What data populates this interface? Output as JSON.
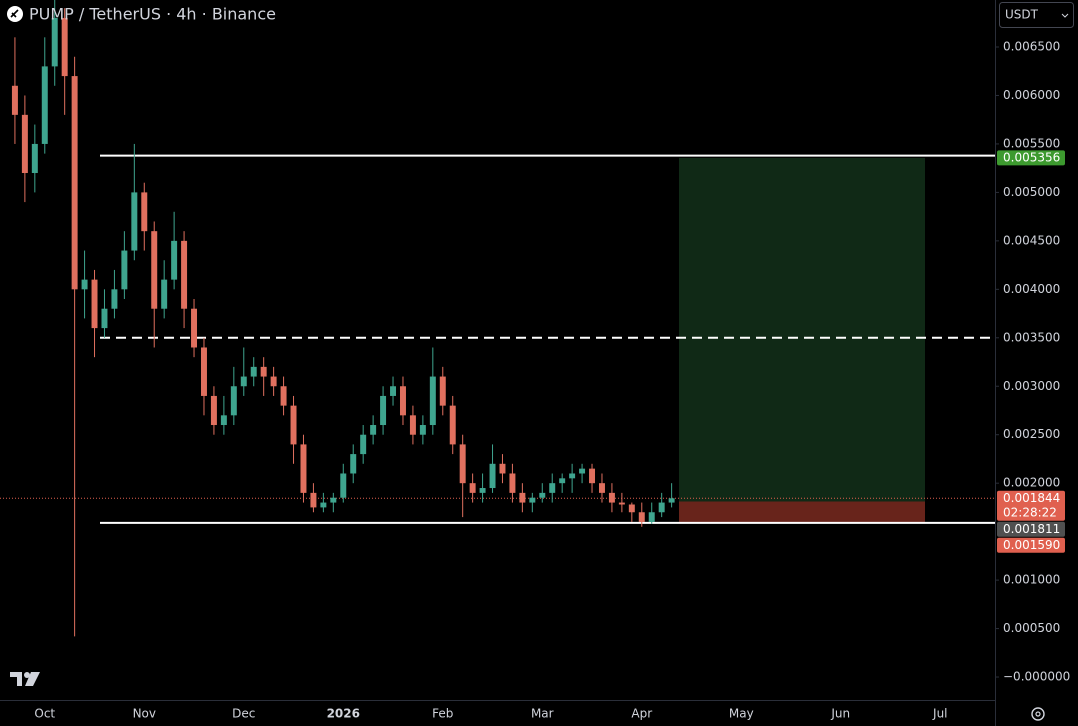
{
  "chart_data": {
    "type": "candlestick",
    "title": "PUMP / TetherUS · 4h · Binance",
    "currency": "USDT",
    "up_color": "#3fa58f",
    "down_color": "#e0705f",
    "categories": [
      null,
      null,
      null,
      null,
      "Oct",
      null,
      null,
      null,
      null,
      null,
      null,
      null,
      null,
      null,
      "Nov",
      null,
      null,
      null,
      null,
      null,
      null,
      null,
      null,
      null,
      "Dec",
      null,
      null,
      null,
      null,
      null,
      null,
      null,
      null,
      null,
      "2026",
      null,
      null,
      null,
      null,
      null,
      null,
      null,
      null,
      null,
      "Feb",
      null,
      null,
      null,
      null,
      null,
      null,
      null,
      null,
      null,
      "Mar",
      null,
      null,
      null,
      null,
      null,
      null,
      null,
      null,
      null,
      "Apr",
      null,
      null,
      null,
      null,
      null,
      null,
      null,
      null,
      null,
      "May",
      null,
      null,
      null,
      null,
      null,
      null,
      null,
      null,
      null,
      "Jun",
      null,
      null,
      null,
      null,
      null,
      null,
      null,
      null,
      null,
      "Jul",
      null,
      null,
      null,
      null,
      null
    ],
    "candles": [
      null,
      [
        0.0061,
        0.0066,
        0.0055,
        0.0058
      ],
      [
        0.0058,
        0.006,
        0.0049,
        0.0052
      ],
      [
        0.0052,
        0.0057,
        0.005,
        0.0055
      ],
      [
        0.0055,
        0.0066,
        0.0054,
        0.0063
      ],
      [
        0.0063,
        0.007,
        0.0061,
        0.0068
      ],
      [
        0.0068,
        0.0069,
        0.0058,
        0.0062
      ],
      [
        0.0062,
        0.0064,
        0.00042,
        0.004
      ],
      [
        0.004,
        0.0044,
        0.0037,
        0.0041
      ],
      [
        0.0041,
        0.0042,
        0.0033,
        0.0036
      ],
      [
        0.0036,
        0.004,
        0.0035,
        0.0038
      ],
      [
        0.0038,
        0.0042,
        0.0037,
        0.004
      ],
      [
        0.004,
        0.0046,
        0.0039,
        0.0044
      ],
      [
        0.0044,
        0.0055,
        0.0043,
        0.005
      ],
      [
        0.005,
        0.0051,
        0.0044,
        0.0046
      ],
      [
        0.0046,
        0.0047,
        0.0034,
        0.0038
      ],
      [
        0.0038,
        0.0043,
        0.0037,
        0.0041
      ],
      [
        0.0041,
        0.0048,
        0.004,
        0.0045
      ],
      [
        0.0045,
        0.0046,
        0.0036,
        0.0038
      ],
      [
        0.0038,
        0.0039,
        0.0033,
        0.0034
      ],
      [
        0.0034,
        0.0035,
        0.0027,
        0.0029
      ],
      [
        0.0029,
        0.003,
        0.0025,
        0.0026
      ],
      [
        0.0026,
        0.0029,
        0.0025,
        0.0027
      ],
      [
        0.0027,
        0.0032,
        0.0026,
        0.003
      ],
      [
        0.003,
        0.0034,
        0.0029,
        0.0031
      ],
      [
        0.0031,
        0.0033,
        0.003,
        0.0032
      ],
      [
        0.0032,
        0.0033,
        0.0029,
        0.0031
      ],
      [
        0.0031,
        0.0032,
        0.0029,
        0.003
      ],
      [
        0.003,
        0.0031,
        0.0027,
        0.0028
      ],
      [
        0.0028,
        0.0029,
        0.0022,
        0.0024
      ],
      [
        0.0024,
        0.0025,
        0.0018,
        0.0019
      ],
      [
        0.0019,
        0.002,
        0.0017,
        0.00175
      ],
      [
        0.00175,
        0.0019,
        0.0017,
        0.0018
      ],
      [
        0.0018,
        0.0019,
        0.0017,
        0.00185
      ],
      [
        0.00185,
        0.0022,
        0.0018,
        0.0021
      ],
      [
        0.0021,
        0.0024,
        0.002,
        0.0023
      ],
      [
        0.0023,
        0.0026,
        0.0022,
        0.0025
      ],
      [
        0.0025,
        0.0027,
        0.0024,
        0.0026
      ],
      [
        0.0026,
        0.003,
        0.0025,
        0.0029
      ],
      [
        0.0029,
        0.0031,
        0.0028,
        0.003
      ],
      [
        0.003,
        0.0031,
        0.0026,
        0.0027
      ],
      [
        0.0027,
        0.0028,
        0.0024,
        0.0025
      ],
      [
        0.0025,
        0.0027,
        0.0024,
        0.0026
      ],
      [
        0.0026,
        0.0034,
        0.0025,
        0.0031
      ],
      [
        0.0031,
        0.0032,
        0.0027,
        0.0028
      ],
      [
        0.0028,
        0.0029,
        0.0023,
        0.0024
      ],
      [
        0.0024,
        0.0025,
        0.00165,
        0.002
      ],
      [
        0.002,
        0.0021,
        0.0018,
        0.0019
      ],
      [
        0.0019,
        0.0021,
        0.0018,
        0.00195
      ],
      [
        0.00195,
        0.0024,
        0.0019,
        0.0022
      ],
      [
        0.0022,
        0.0023,
        0.002,
        0.0021
      ],
      [
        0.0021,
        0.0022,
        0.0018,
        0.0019
      ],
      [
        0.0019,
        0.002,
        0.0017,
        0.0018
      ],
      [
        0.0018,
        0.0019,
        0.0017,
        0.00185
      ],
      [
        0.00185,
        0.002,
        0.0018,
        0.0019
      ],
      [
        0.0019,
        0.0021,
        0.0018,
        0.002
      ],
      [
        0.002,
        0.0021,
        0.0019,
        0.00205
      ],
      [
        0.00205,
        0.0022,
        0.0019,
        0.0021
      ],
      [
        0.0021,
        0.0022,
        0.002,
        0.00215
      ],
      [
        0.00215,
        0.0022,
        0.0019,
        0.002
      ],
      [
        0.002,
        0.0021,
        0.0018,
        0.0019
      ],
      [
        0.0019,
        0.002,
        0.0017,
        0.0018
      ],
      [
        0.0018,
        0.0019,
        0.0017,
        0.00178
      ],
      [
        0.00178,
        0.0018,
        0.0016,
        0.0017
      ],
      [
        0.0017,
        0.0018,
        0.00155,
        0.0016
      ],
      [
        0.0016,
        0.0018,
        0.00158,
        0.0017
      ],
      [
        0.0017,
        0.0019,
        0.00165,
        0.0018
      ],
      [
        0.0018,
        0.002,
        0.00175,
        0.001844
      ],
      null,
      null,
      null,
      null,
      null,
      null,
      null,
      null,
      null,
      null,
      null,
      null,
      null,
      null,
      null,
      null,
      null,
      null,
      null,
      null,
      null,
      null,
      null,
      null,
      null,
      null,
      null,
      null,
      null,
      null,
      null,
      null
    ],
    "ylim": [
      -0.000237,
      0.006985
    ],
    "yticks": [
      {
        "value": 0.0065,
        "label": "0.006500"
      },
      {
        "value": 0.006,
        "label": "0.006000"
      },
      {
        "value": 0.0055,
        "label": "0.005500"
      },
      {
        "value": 0.005,
        "label": "0.005000"
      },
      {
        "value": 0.0045,
        "label": "0.004500"
      },
      {
        "value": 0.004,
        "label": "0.004000"
      },
      {
        "value": 0.0035,
        "label": "0.003500"
      },
      {
        "value": 0.003,
        "label": "0.003000"
      },
      {
        "value": 0.0025,
        "label": "0.002500"
      },
      {
        "value": 0.002,
        "label": "0.002000"
      },
      {
        "value": 0.001,
        "label": "0.001000"
      },
      {
        "value": 0.0005,
        "label": "0.000500"
      },
      {
        "value": 0,
        "label": "−0.000000"
      }
    ],
    "levels": [
      {
        "value": 0.00538,
        "style": "solid"
      },
      {
        "value": 0.0035,
        "style": "dashed"
      },
      {
        "value": 0.00159,
        "style": "solid"
      }
    ],
    "price_labels": [
      {
        "value": 0.005356,
        "label": "0.005356",
        "color": "#3d9a2f"
      },
      {
        "value": 0.001844,
        "label": "0.001844",
        "color": "#e0604f"
      },
      {
        "value": 0.001811,
        "label": "0.001811",
        "color": "#505050"
      },
      {
        "value": 0.00159,
        "label": "0.001590",
        "color": "#e0604f"
      }
    ],
    "countdown": "02:28:22"
  }
}
